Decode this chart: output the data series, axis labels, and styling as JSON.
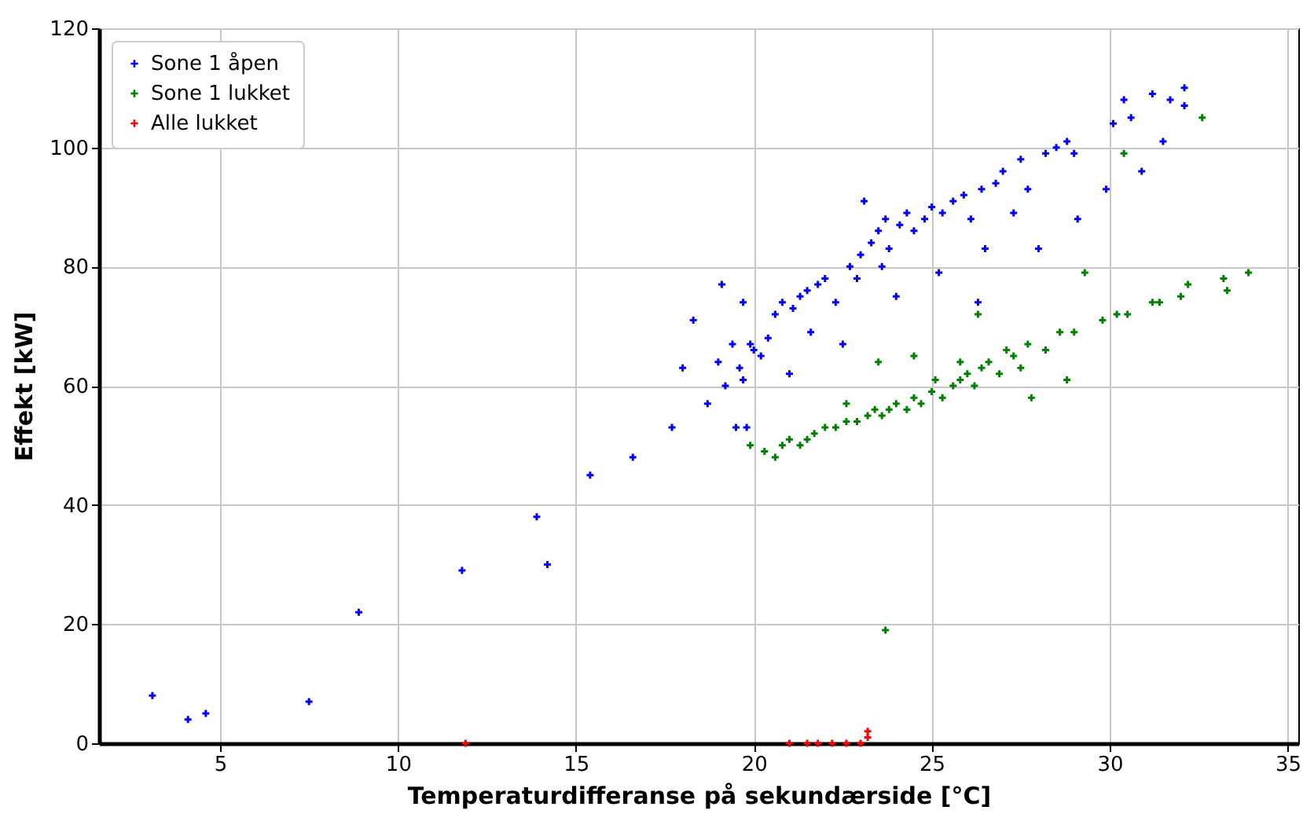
{
  "chart_data": {
    "type": "scatter",
    "xlabel": "Temperaturdifferanse på sekundærside [°C]",
    "ylabel": "Effekt [kW]",
    "xlim": [
      1.6,
      35.3
    ],
    "xticks": [
      5,
      10,
      15,
      20,
      25,
      30,
      35
    ],
    "ylim": [
      0,
      120
    ],
    "yticks": [
      0,
      20,
      40,
      60,
      80,
      100,
      120
    ],
    "grid": true,
    "legend": "top left",
    "marker": "cross",
    "series": [
      {
        "name": "Sone 1 åpen",
        "color": "#0000ff",
        "x": [
          3.1,
          4.1,
          4.6,
          7.5,
          8.9,
          11.8,
          13.9,
          14.2,
          15.4,
          16.6,
          17.7,
          18.0,
          18.3,
          18.7,
          19.0,
          19.1,
          19.2,
          19.4,
          19.5,
          19.6,
          19.7,
          19.7,
          19.8,
          19.9,
          20.0,
          20.2,
          20.4,
          20.6,
          20.8,
          21.0,
          21.1,
          21.3,
          21.5,
          21.6,
          21.8,
          22.0,
          22.3,
          22.5,
          22.7,
          22.9,
          23.0,
          23.1,
          23.3,
          23.5,
          23.6,
          23.7,
          23.8,
          24.0,
          24.1,
          24.3,
          24.5,
          24.8,
          25.0,
          25.2,
          25.3,
          25.6,
          25.9,
          26.1,
          26.3,
          26.4,
          26.5,
          26.8,
          27.0,
          27.3,
          27.5,
          27.7,
          28.0,
          28.2,
          28.5,
          28.8,
          29.0,
          29.1,
          29.9,
          30.1,
          30.4,
          30.6,
          30.9,
          31.2,
          31.5,
          31.7,
          32.1,
          32.1
        ],
        "values": [
          8,
          4,
          5,
          7,
          22,
          29,
          38,
          30,
          45,
          48,
          53,
          63,
          71,
          57,
          64,
          77,
          60,
          67,
          53,
          63,
          74,
          61,
          53,
          67,
          66,
          65,
          68,
          72,
          74,
          62,
          73,
          75,
          76,
          69,
          77,
          78,
          74,
          67,
          80,
          78,
          82,
          91,
          84,
          86,
          80,
          88,
          83,
          75,
          87,
          89,
          86,
          88,
          90,
          79,
          89,
          91,
          92,
          88,
          74,
          93,
          83,
          94,
          96,
          89,
          98,
          93,
          83,
          99,
          100,
          101,
          99,
          88,
          93,
          104,
          108,
          105,
          96,
          109,
          101,
          108,
          110,
          107
        ]
      },
      {
        "name": "Sone 1 lukket",
        "color": "#008000",
        "x": [
          19.9,
          20.3,
          20.6,
          20.8,
          21.0,
          21.3,
          21.5,
          21.7,
          22.0,
          22.3,
          22.6,
          22.6,
          22.9,
          23.2,
          23.4,
          23.5,
          23.6,
          23.7,
          23.8,
          24.0,
          24.3,
          24.5,
          24.5,
          24.7,
          25.0,
          25.1,
          25.3,
          25.6,
          25.8,
          25.8,
          26.0,
          26.2,
          26.3,
          26.4,
          26.6,
          26.9,
          27.1,
          27.3,
          27.5,
          27.7,
          27.8,
          28.2,
          28.6,
          28.8,
          29.0,
          29.3,
          29.8,
          30.2,
          30.4,
          30.5,
          31.2,
          31.4,
          32.0,
          32.2,
          32.6,
          33.2,
          33.3,
          33.9
        ],
        "values": [
          50,
          49,
          48,
          50,
          51,
          50,
          51,
          52,
          53,
          53,
          54,
          57,
          54,
          55,
          56,
          64,
          55,
          19,
          56,
          57,
          56,
          58,
          65,
          57,
          59,
          61,
          58,
          60,
          61,
          64,
          62,
          60,
          72,
          63,
          64,
          62,
          66,
          65,
          63,
          67,
          58,
          66,
          69,
          61,
          69,
          79,
          71,
          72,
          99,
          72,
          74,
          74,
          75,
          77,
          105,
          78,
          76,
          79
        ]
      },
      {
        "name": "Alle lukket",
        "color": "#ff0000",
        "x": [
          11.9,
          21.0,
          21.5,
          21.8,
          22.2,
          22.6,
          23.0,
          23.2,
          23.2
        ],
        "values": [
          0,
          0,
          0,
          0,
          0,
          0,
          0,
          1,
          2
        ]
      }
    ]
  }
}
